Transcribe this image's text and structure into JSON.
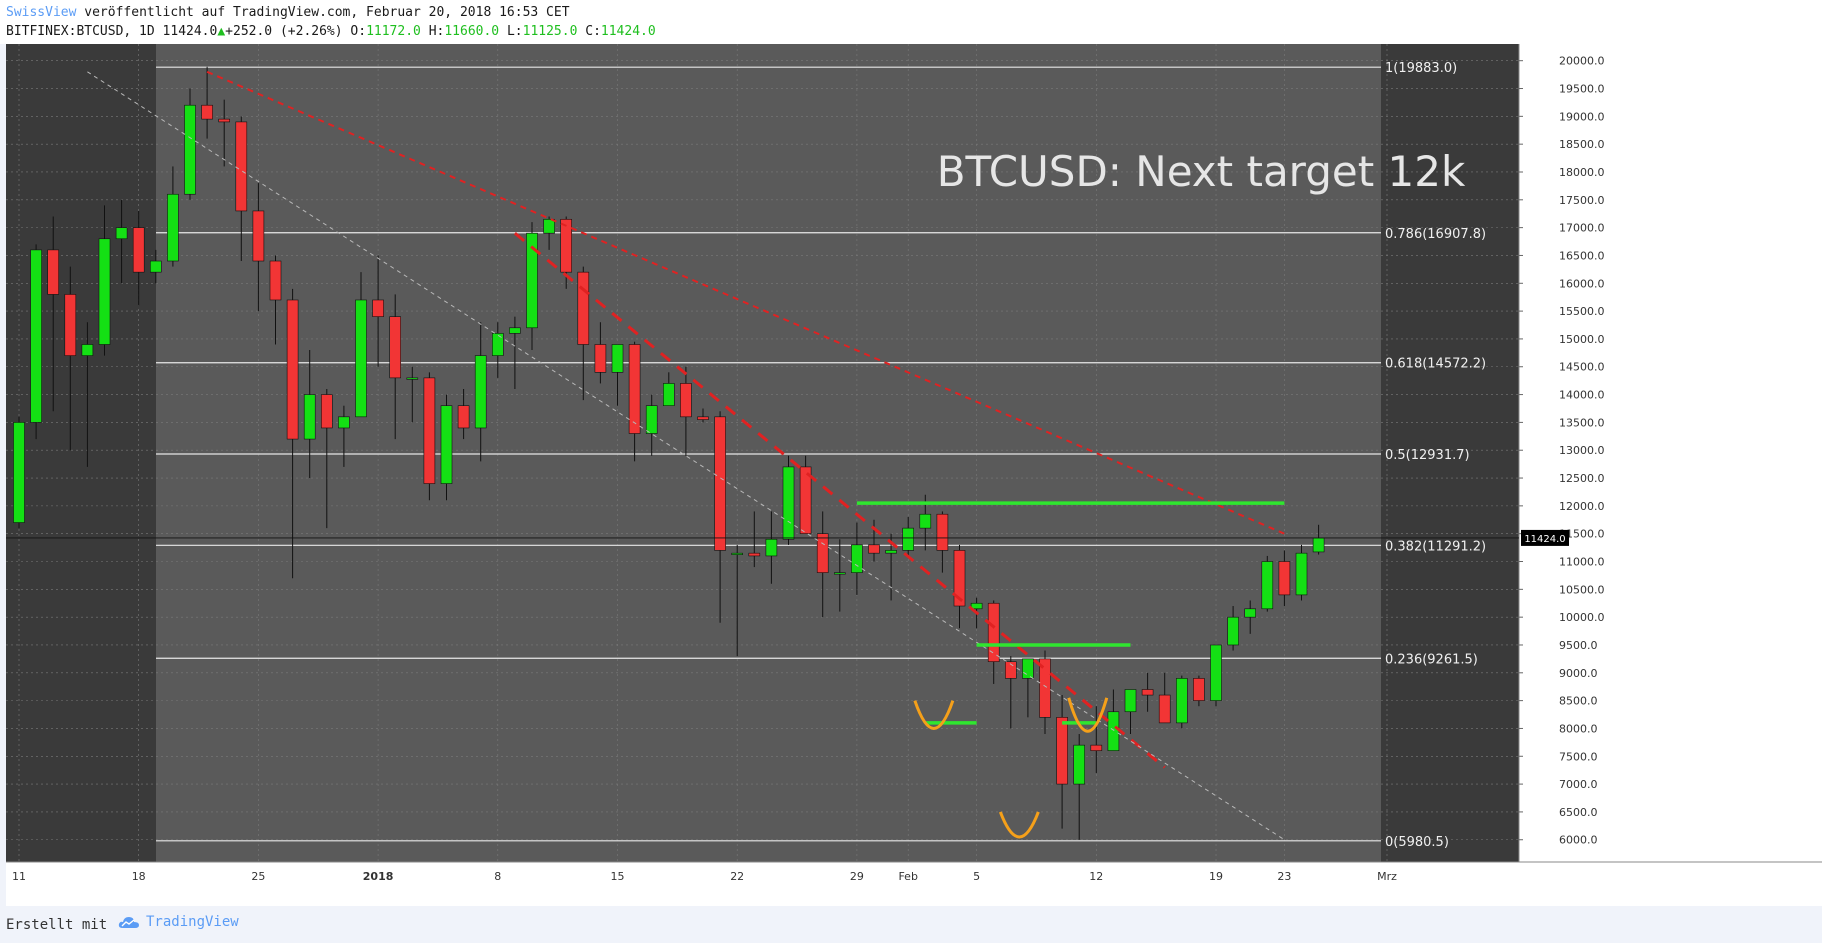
{
  "header": {
    "author": "SwissView",
    "published_text": "veröffentlicht auf TradingView.com, Februar 20, 2018 16:53 CET",
    "symbol": "BITFINEX:BTCUSD, 1D",
    "last": "11424.0",
    "change": "+252.0 (+2.26%)",
    "open_label": "O:",
    "open": "11172.0",
    "high_label": "H:",
    "high": "11660.0",
    "low_label": "L:",
    "low": "11125.0",
    "close_label": "C:",
    "close": "11424.0"
  },
  "footer": {
    "made_with": "Erstellt mit",
    "brand": "TradingView"
  },
  "colors": {
    "up": "#14e014",
    "down": "#f23535",
    "chart_bg": "#5a5a5a",
    "side_bg": "#3a3a3a",
    "fib_line": "#e8e8e8",
    "trend_red": "#e02222",
    "resistance_green": "#2fe62f",
    "pattern_orange": "#f5a01a"
  },
  "chart_data": {
    "type": "candlestick",
    "title": "BTCUSD: Next target 12k",
    "ylim": [
      5600,
      20300
    ],
    "price_axis_ticks": [
      "6000.0",
      "6500.0",
      "7000.0",
      "7500.0",
      "8000.0",
      "8500.0",
      "9000.0",
      "9500.0",
      "10000.0",
      "10500.0",
      "11000.0",
      "11500.0",
      "12000.0",
      "12500.0",
      "13000.0",
      "13500.0",
      "14000.0",
      "14500.0",
      "15000.0",
      "15500.0",
      "16000.0",
      "16500.0",
      "17000.0",
      "17500.0",
      "18000.0",
      "18500.0",
      "19000.0",
      "19500.0",
      "20000.0"
    ],
    "current_price_label": "11424.0",
    "x_ticks": [
      {
        "label": "11",
        "day": 0
      },
      {
        "label": "18",
        "day": 7
      },
      {
        "label": "25",
        "day": 14
      },
      {
        "label": "2018",
        "day": 21
      },
      {
        "label": "8",
        "day": 28
      },
      {
        "label": "15",
        "day": 35
      },
      {
        "label": "22",
        "day": 42
      },
      {
        "label": "29",
        "day": 49
      },
      {
        "label": "Feb",
        "day": 52
      },
      {
        "label": "5",
        "day": 56
      },
      {
        "label": "12",
        "day": 63
      },
      {
        "label": "19",
        "day": 70
      },
      {
        "label": "23",
        "day": 74
      },
      {
        "label": "Mrz",
        "day": 80
      }
    ],
    "fib_levels": [
      {
        "label": "1(19883.0)",
        "value": 19883
      },
      {
        "label": "0.786(16907.8)",
        "value": 16907.8
      },
      {
        "label": "0.618(14572.2)",
        "value": 14572.2
      },
      {
        "label": "0.5(12931.7)",
        "value": 12931.7
      },
      {
        "label": "0.382(11291.2)",
        "value": 11291.2
      },
      {
        "label": "0.236(9261.5)",
        "value": 9261.5
      },
      {
        "label": "0(5980.5)",
        "value": 5980.5
      }
    ],
    "candles": [
      {
        "o": 11700,
        "h": 13600,
        "l": 11600,
        "c": 13500
      },
      {
        "o": 13500,
        "h": 16700,
        "l": 13200,
        "c": 16600
      },
      {
        "o": 16600,
        "h": 17200,
        "l": 13700,
        "c": 15800
      },
      {
        "o": 15800,
        "h": 16300,
        "l": 13000,
        "c": 14700
      },
      {
        "o": 14700,
        "h": 15300,
        "l": 12700,
        "c": 14900
      },
      {
        "o": 14900,
        "h": 17400,
        "l": 14700,
        "c": 16800
      },
      {
        "o": 16800,
        "h": 17500,
        "l": 16000,
        "c": 17000
      },
      {
        "o": 17000,
        "h": 17300,
        "l": 15600,
        "c": 16200
      },
      {
        "o": 16200,
        "h": 16600,
        "l": 16000,
        "c": 16400
      },
      {
        "o": 16400,
        "h": 18100,
        "l": 16300,
        "c": 17600
      },
      {
        "o": 17600,
        "h": 19500,
        "l": 17500,
        "c": 19200
      },
      {
        "o": 19200,
        "h": 19891,
        "l": 18600,
        "c": 18950
      },
      {
        "o": 18950,
        "h": 19300,
        "l": 18100,
        "c": 18900
      },
      {
        "o": 18900,
        "h": 19000,
        "l": 16400,
        "c": 17300
      },
      {
        "o": 17300,
        "h": 17800,
        "l": 15500,
        "c": 16400
      },
      {
        "o": 16400,
        "h": 16500,
        "l": 14900,
        "c": 15700
      },
      {
        "o": 15700,
        "h": 15900,
        "l": 10700,
        "c": 13200
      },
      {
        "o": 13200,
        "h": 14800,
        "l": 12500,
        "c": 14000
      },
      {
        "o": 14000,
        "h": 14100,
        "l": 11600,
        "c": 13400
      },
      {
        "o": 13400,
        "h": 13800,
        "l": 12700,
        "c": 13600
      },
      {
        "o": 13600,
        "h": 16200,
        "l": 13600,
        "c": 15700
      },
      {
        "o": 15700,
        "h": 16500,
        "l": 14500,
        "c": 15400
      },
      {
        "o": 15400,
        "h": 15800,
        "l": 13200,
        "c": 14300
      },
      {
        "o": 14300,
        "h": 14500,
        "l": 13500,
        "c": 14300
      },
      {
        "o": 14300,
        "h": 14400,
        "l": 12100,
        "c": 12400
      },
      {
        "o": 12400,
        "h": 14000,
        "l": 12100,
        "c": 13800
      },
      {
        "o": 13800,
        "h": 14100,
        "l": 13200,
        "c": 13400
      },
      {
        "o": 13400,
        "h": 15300,
        "l": 12800,
        "c": 14700
      },
      {
        "o": 14700,
        "h": 15300,
        "l": 14300,
        "c": 15100
      },
      {
        "o": 15100,
        "h": 15400,
        "l": 14100,
        "c": 15200
      },
      {
        "o": 15200,
        "h": 17100,
        "l": 14800,
        "c": 16900
      },
      {
        "o": 16900,
        "h": 17200,
        "l": 16600,
        "c": 17150
      },
      {
        "o": 17150,
        "h": 17200,
        "l": 15900,
        "c": 16200
      },
      {
        "o": 16200,
        "h": 16300,
        "l": 13900,
        "c": 14900
      },
      {
        "o": 14900,
        "h": 15300,
        "l": 14200,
        "c": 14400
      },
      {
        "o": 14400,
        "h": 14900,
        "l": 13800,
        "c": 14900
      },
      {
        "o": 14900,
        "h": 14950,
        "l": 12800,
        "c": 13300
      },
      {
        "o": 13300,
        "h": 14000,
        "l": 12900,
        "c": 13800
      },
      {
        "o": 13800,
        "h": 14400,
        "l": 13800,
        "c": 14200
      },
      {
        "o": 14200,
        "h": 14500,
        "l": 12900,
        "c": 13600
      },
      {
        "o": 13600,
        "h": 13750,
        "l": 13500,
        "c": 13550
      },
      {
        "o": 13600,
        "h": 13700,
        "l": 9900,
        "c": 11200
      },
      {
        "o": 11150,
        "h": 11300,
        "l": 9300,
        "c": 11150
      },
      {
        "o": 11150,
        "h": 11900,
        "l": 10900,
        "c": 11100
      },
      {
        "o": 11100,
        "h": 11900,
        "l": 10600,
        "c": 11400
      },
      {
        "o": 11400,
        "h": 12900,
        "l": 11300,
        "c": 12700
      },
      {
        "o": 12700,
        "h": 12900,
        "l": 11500,
        "c": 11500
      },
      {
        "o": 11500,
        "h": 11900,
        "l": 10000,
        "c": 10800
      },
      {
        "o": 10800,
        "h": 11400,
        "l": 10100,
        "c": 10800
      },
      {
        "o": 10800,
        "h": 11700,
        "l": 10400,
        "c": 11300
      },
      {
        "o": 11300,
        "h": 11750,
        "l": 11000,
        "c": 11150
      },
      {
        "o": 11150,
        "h": 11500,
        "l": 10300,
        "c": 11200
      },
      {
        "o": 11200,
        "h": 11800,
        "l": 11100,
        "c": 11600
      },
      {
        "o": 11600,
        "h": 12200,
        "l": 11200,
        "c": 11850
      },
      {
        "o": 11850,
        "h": 11900,
        "l": 10800,
        "c": 11200
      },
      {
        "o": 11200,
        "h": 11300,
        "l": 9800,
        "c": 10200
      },
      {
        "o": 10150,
        "h": 10350,
        "l": 9800,
        "c": 10250
      },
      {
        "o": 10250,
        "h": 10300,
        "l": 8800,
        "c": 9200
      },
      {
        "o": 9200,
        "h": 9300,
        "l": 8000,
        "c": 8900
      },
      {
        "o": 8900,
        "h": 9200,
        "l": 8200,
        "c": 9250
      },
      {
        "o": 9250,
        "h": 9400,
        "l": 7900,
        "c": 8200
      },
      {
        "o": 8200,
        "h": 8600,
        "l": 6200,
        "c": 7000
      },
      {
        "o": 7000,
        "h": 7900,
        "l": 6000,
        "c": 7700
      },
      {
        "o": 7700,
        "h": 8400,
        "l": 7200,
        "c": 7600
      },
      {
        "o": 7600,
        "h": 8700,
        "l": 7600,
        "c": 8300
      },
      {
        "o": 8300,
        "h": 8700,
        "l": 7900,
        "c": 8700
      },
      {
        "o": 8700,
        "h": 9000,
        "l": 8300,
        "c": 8600
      },
      {
        "o": 8600,
        "h": 9000,
        "l": 8100,
        "c": 8100
      },
      {
        "o": 8100,
        "h": 8950,
        "l": 8000,
        "c": 8900
      },
      {
        "o": 8900,
        "h": 8950,
        "l": 8400,
        "c": 8500
      },
      {
        "o": 8500,
        "h": 9500,
        "l": 8400,
        "c": 9500
      },
      {
        "o": 9500,
        "h": 10200,
        "l": 9400,
        "c": 10000
      },
      {
        "o": 10000,
        "h": 10300,
        "l": 9700,
        "c": 10150
      },
      {
        "o": 10150,
        "h": 11100,
        "l": 10100,
        "c": 11000
      },
      {
        "o": 11000,
        "h": 11200,
        "l": 10200,
        "c": 10400
      },
      {
        "o": 10400,
        "h": 11300,
        "l": 10300,
        "c": 11150
      },
      {
        "o": 11172,
        "h": 11660,
        "l": 11125,
        "c": 11424
      }
    ],
    "trendlines": [
      {
        "name": "red-long",
        "from": {
          "day": 11,
          "price": 19800
        },
        "to": {
          "day": 74,
          "price": 11500
        }
      },
      {
        "name": "red-short",
        "from": {
          "day": 29,
          "price": 16900
        },
        "to": {
          "day": 67,
          "price": 7300
        }
      },
      {
        "name": "grey-diag",
        "from": {
          "day": 4,
          "price": 19800
        },
        "to": {
          "day": 74,
          "price": 6000
        }
      }
    ],
    "resistance_lines": [
      {
        "from_day": 49,
        "to_day": 74,
        "price": 12050
      },
      {
        "from_day": 56,
        "to_day": 65,
        "price": 9500
      },
      {
        "from_day": 53,
        "to_day": 56,
        "price": 8100
      },
      {
        "from_day": 61,
        "to_day": 63,
        "price": 8100
      }
    ],
    "head_shoulders": [
      {
        "day": 53.5,
        "price_top": 8500,
        "price_bottom": 8000
      },
      {
        "day": 58.5,
        "price_top": 6500,
        "price_bottom": 6050
      },
      {
        "day": 62.5,
        "price_top": 8550,
        "price_bottom": 7950
      }
    ]
  }
}
